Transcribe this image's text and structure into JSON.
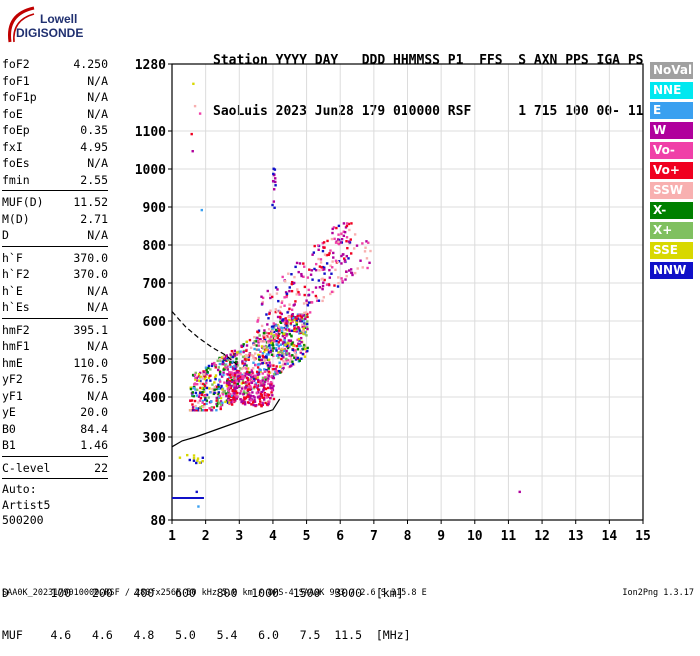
{
  "logo": {
    "line1": "Lowell",
    "line2": "DIGISONDE"
  },
  "header": {
    "line1": "Station YYYY DAY   DDD HHMMSS P1  FFS  S AXN PPS IGA PS",
    "line2": "SaoLuis 2023 Jun28 179 010000 RSF      1 715 100 00- 11"
  },
  "params": [
    [
      {
        "name": "foF2",
        "value": "4.250"
      },
      {
        "name": "foF1",
        "value": "N/A"
      },
      {
        "name": "foF1p",
        "value": "N/A"
      },
      {
        "name": "foE",
        "value": "N/A"
      },
      {
        "name": "foEp",
        "value": "0.35"
      },
      {
        "name": "fxI",
        "value": "4.95"
      },
      {
        "name": "foEs",
        "value": "N/A"
      },
      {
        "name": "fmin",
        "value": "2.55"
      }
    ],
    [
      {
        "name": "MUF(D)",
        "value": "11.52"
      },
      {
        "name": "M(D)",
        "value": "2.71"
      },
      {
        "name": "D",
        "value": "N/A"
      }
    ],
    [
      {
        "name": "h`F",
        "value": "370.0"
      },
      {
        "name": "h`F2",
        "value": "370.0"
      },
      {
        "name": "h`E",
        "value": "N/A"
      },
      {
        "name": "h`Es",
        "value": "N/A"
      }
    ],
    [
      {
        "name": "hmF2",
        "value": "395.1"
      },
      {
        "name": "hmF1",
        "value": "N/A"
      },
      {
        "name": "hmE",
        "value": "110.0"
      },
      {
        "name": "yF2",
        "value": "76.5"
      },
      {
        "name": "yF1",
        "value": "N/A"
      },
      {
        "name": "yE",
        "value": "20.0"
      },
      {
        "name": "B0",
        "value": "84.4"
      },
      {
        "name": "B1",
        "value": "1.46"
      }
    ],
    [
      {
        "name": "C-level",
        "value": "22"
      }
    ]
  ],
  "autoscale": [
    "Auto:",
    "Artist5",
    "500200"
  ],
  "legend": [
    {
      "label": "NoVal",
      "color": "#a0a0a0"
    },
    {
      "label": "NNE",
      "color": "#00e8f0"
    },
    {
      "label": "E",
      "color": "#3aa0f0"
    },
    {
      "label": "W",
      "color": "#b0009c"
    },
    {
      "label": "Vo-",
      "color": "#f040a8"
    },
    {
      "label": "Vo+",
      "color": "#f00020"
    },
    {
      "label": "SSW",
      "color": "#f8b0b0"
    },
    {
      "label": "X-",
      "color": "#008000"
    },
    {
      "label": "X+",
      "color": "#80c060"
    },
    {
      "label": "SSE",
      "color": "#d8d800"
    },
    {
      "label": "NNW",
      "color": "#1010c8"
    }
  ],
  "footer": {
    "distance_row": "D      100   200   400   600   800  1000  1500  3000  [km]",
    "muf_row": "MUF    4.6   4.6   4.8   5.0   5.4   6.0   7.5  11.5  [MHz]",
    "file_line": "SAA0K_2023179010000.RSF / 280fx256h 50 kHz 5.0 km / DPS-4 SAA0K 903 / 2.6 S 315.8 E",
    "version": "Ion2Png 1.3.17"
  },
  "chart_data": {
    "type": "scatter",
    "xlim": [
      1,
      15
    ],
    "ylim": [
      80,
      1280
    ],
    "x_ticks": [
      1,
      2,
      3,
      4,
      5,
      6,
      7,
      8,
      9,
      10,
      11,
      12,
      13,
      14,
      15
    ],
    "y_ticks": [
      80,
      200,
      300,
      400,
      500,
      600,
      700,
      800,
      900,
      1000,
      1100,
      1280
    ],
    "grid": true,
    "curves": {
      "solid_profile": [
        [
          1,
          275
        ],
        [
          1.3,
          290
        ],
        [
          1.7,
          300
        ],
        [
          2.2,
          315
        ],
        [
          2.7,
          330
        ],
        [
          3.2,
          345
        ],
        [
          3.7,
          360
        ],
        [
          4.0,
          368
        ],
        [
          4.2,
          395
        ]
      ],
      "dashed_profile": [
        [
          1,
          625
        ],
        [
          1.4,
          585
        ],
        [
          1.8,
          555
        ],
        [
          2.2,
          530
        ],
        [
          2.6,
          510
        ],
        [
          3.0,
          480
        ]
      ]
    },
    "clusters": [
      {
        "name": "main F-trace",
        "x": [
          1.5,
          5.0
        ],
        "y": [
          370,
          620
        ],
        "count": 950,
        "colors": [
          "W",
          "Vo-",
          "Vo+",
          "SSE",
          "NNW",
          "SSW",
          "X+",
          "X-",
          "E"
        ]
      },
      {
        "name": "red core",
        "x": [
          2.6,
          4.0
        ],
        "y": [
          380,
          470
        ],
        "count": 240,
        "colors": [
          "Vo+",
          "Vo-",
          "W"
        ]
      },
      {
        "name": "upper spread",
        "x": [
          3.5,
          6.3
        ],
        "y": [
          550,
          860
        ],
        "count": 260,
        "colors": [
          "W",
          "Vo-",
          "SSW",
          "NNW",
          "Vo+"
        ]
      },
      {
        "name": "tail",
        "x": [
          5.8,
          6.9
        ],
        "y": [
          720,
          840
        ],
        "count": 40,
        "colors": [
          "SSW",
          "W",
          "Vo-"
        ]
      },
      {
        "name": "low echoes",
        "x": [
          1.4,
          1.9
        ],
        "y": [
          235,
          260
        ],
        "count": 12,
        "colors": [
          "NNW",
          "SSE"
        ]
      },
      {
        "name": "spike",
        "x": [
          3.95,
          4.05
        ],
        "y": [
          900,
          1015
        ],
        "count": 14,
        "colors": [
          "NNW",
          "W"
        ]
      }
    ],
    "lines": [
      {
        "x": [
          1.0,
          1.95
        ],
        "y": [
          140,
          140
        ],
        "color": "NNW"
      }
    ],
    "points": [
      {
        "x": 1.6,
        "y": 1230,
        "color": "SSE"
      },
      {
        "x": 1.65,
        "y": 1170,
        "color": "SSW"
      },
      {
        "x": 1.8,
        "y": 1150,
        "color": "Vo-"
      },
      {
        "x": 1.55,
        "y": 1095,
        "color": "Vo+"
      },
      {
        "x": 1.58,
        "y": 1050,
        "color": "W"
      },
      {
        "x": 1.85,
        "y": 895,
        "color": "E"
      },
      {
        "x": 11.3,
        "y": 160,
        "color": "W"
      },
      {
        "x": 1.2,
        "y": 250,
        "color": "SSE"
      },
      {
        "x": 1.7,
        "y": 160,
        "color": "NNW"
      },
      {
        "x": 1.75,
        "y": 120,
        "color": "E"
      }
    ]
  }
}
